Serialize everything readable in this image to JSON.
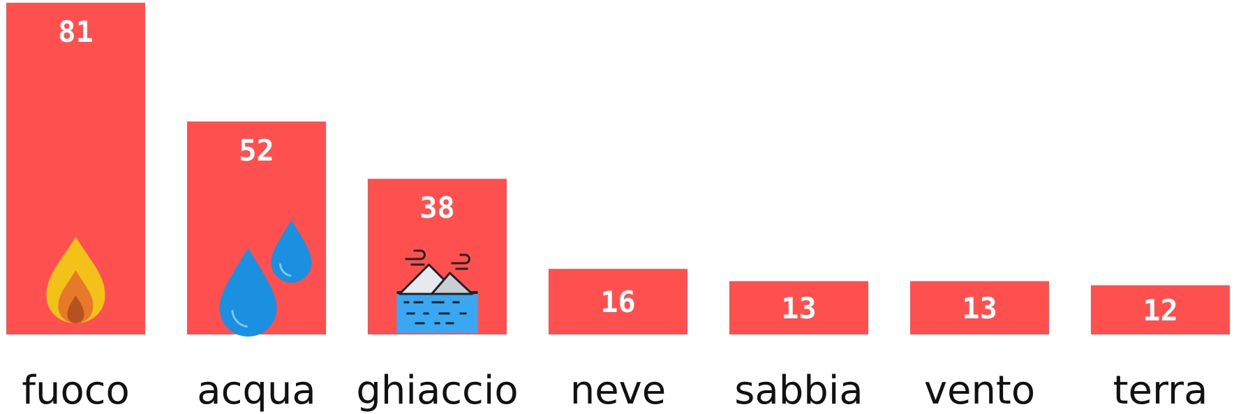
{
  "chart_data": {
    "type": "bar",
    "categories": [
      "fuoco",
      "acqua",
      "ghiaccio",
      "neve",
      "sabbia",
      "vento",
      "terra"
    ],
    "values": [
      81,
      52,
      38,
      16,
      13,
      13,
      12
    ],
    "icons": [
      "flame-icon",
      "water-drops-icon",
      "iceberg-icon",
      "",
      "",
      "",
      ""
    ],
    "ylim": [
      0,
      81
    ],
    "bar_color": "#ff5050",
    "label_color": "#ffffff",
    "category_color": "#111111"
  }
}
